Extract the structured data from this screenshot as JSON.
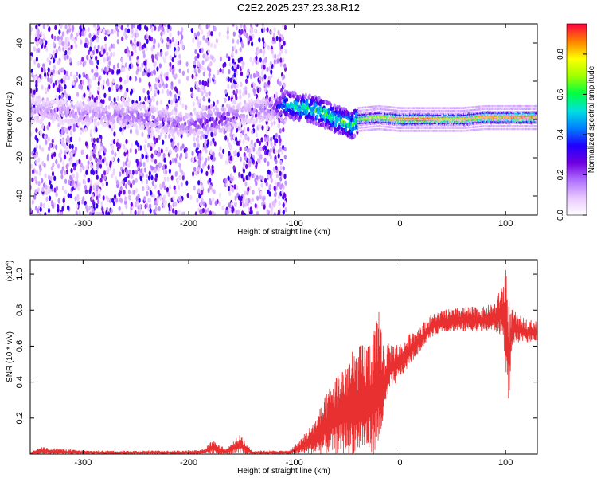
{
  "title": "C2E2.2025.237.23.38.R12",
  "chart_data": [
    {
      "type": "heatmap",
      "xlabel": "Height of straight line (km)",
      "ylabel": "Frequency (Hz)",
      "xlim": [
        -350,
        130
      ],
      "ylim": [
        -50,
        50
      ],
      "xticks": [
        -300,
        -200,
        -100,
        0,
        100
      ],
      "yticks": [
        -40,
        -20,
        0,
        20,
        40
      ],
      "colorbar": {
        "label": "Normalized spectral amplitude",
        "range": [
          0.0,
          0.95
        ],
        "ticks": [
          "0.0",
          "0.2",
          "0.4",
          "0.6",
          "0.8"
        ],
        "tick_values": [
          0.0,
          0.2,
          0.4,
          0.6,
          0.8
        ],
        "colormap": [
          "#ffffff",
          "#e8c8ff",
          "#b070ff",
          "#7000e0",
          "#2000ff",
          "#0080ff",
          "#00e0e0",
          "#00ff40",
          "#a0ff00",
          "#ffff00",
          "#ff8000",
          "#ff0040"
        ]
      },
      "ridge": {
        "x": [
          -350,
          -300,
          -250,
          -200,
          -170,
          -150,
          -120,
          -110,
          -100,
          -80,
          -60,
          -45,
          -40,
          -20,
          0,
          20,
          40,
          60,
          80,
          100,
          120,
          130
        ],
        "center": [
          5,
          3,
          2,
          -3,
          0,
          3,
          6,
          8,
          7,
          5,
          0,
          -3,
          0,
          1,
          0,
          0,
          0,
          0,
          1,
          1,
          1,
          1
        ],
        "amplitude": [
          0.15,
          0.15,
          0.2,
          0.2,
          0.3,
          0.15,
          0.2,
          0.5,
          0.55,
          0.6,
          0.6,
          0.6,
          0.65,
          0.75,
          0.85,
          0.9,
          0.8,
          0.8,
          0.85,
          0.85,
          0.9,
          0.85
        ]
      }
    },
    {
      "type": "line",
      "xlabel": "Height of straight line (km)",
      "ylabel": "SNR (10 * v/v)",
      "multiplier": "(x10",
      "multiplier_exp": "4",
      "multiplier_close": ")",
      "xlim": [
        -350,
        130
      ],
      "ylim": [
        0,
        1.08
      ],
      "xticks": [
        -300,
        -200,
        -100,
        0,
        100
      ],
      "yticks": [
        0.2,
        0.4,
        0.6,
        0.8,
        1.0
      ],
      "ytick_labels": [
        "0.2",
        "0.4",
        "0.6",
        "0.8",
        "1.0"
      ],
      "series": [
        {
          "color": "#e83030",
          "envelope": {
            "x": [
              -350,
              -340,
              -300,
              -250,
              -200,
              -185,
              -178,
              -165,
              -158,
              -150,
              -148,
              -140,
              -120,
              -105,
              -95,
              -80,
              -65,
              -50,
              -35,
              -25,
              -20,
              -15,
              -10,
              0,
              10,
              20,
              30,
              40,
              60,
              80,
              90,
              97,
              100,
              102,
              104,
              106,
              110,
              120,
              130
            ],
            "low": [
              0.0,
              0.0,
              0.0,
              0.0,
              0.0,
              0.0,
              0.0,
              0.0,
              0.0,
              0.0,
              0.0,
              0.0,
              0.0,
              0.0,
              0.0,
              0.0,
              0.0,
              0.0,
              0.0,
              0.0,
              0.02,
              0.2,
              0.35,
              0.42,
              0.5,
              0.58,
              0.65,
              0.68,
              0.68,
              0.68,
              0.68,
              0.65,
              0.5,
              0.28,
              0.35,
              0.6,
              0.62,
              0.62,
              0.63
            ],
            "high": [
              0.01,
              0.04,
              0.02,
              0.02,
              0.02,
              0.03,
              0.08,
              0.03,
              0.07,
              0.12,
              0.08,
              0.02,
              0.02,
              0.02,
              0.08,
              0.2,
              0.4,
              0.55,
              0.62,
              0.68,
              0.82,
              0.6,
              0.62,
              0.62,
              0.68,
              0.72,
              0.78,
              0.8,
              0.82,
              0.82,
              0.85,
              0.95,
              1.08,
              0.95,
              0.8,
              0.82,
              0.78,
              0.75,
              0.74
            ]
          }
        }
      ]
    }
  ]
}
